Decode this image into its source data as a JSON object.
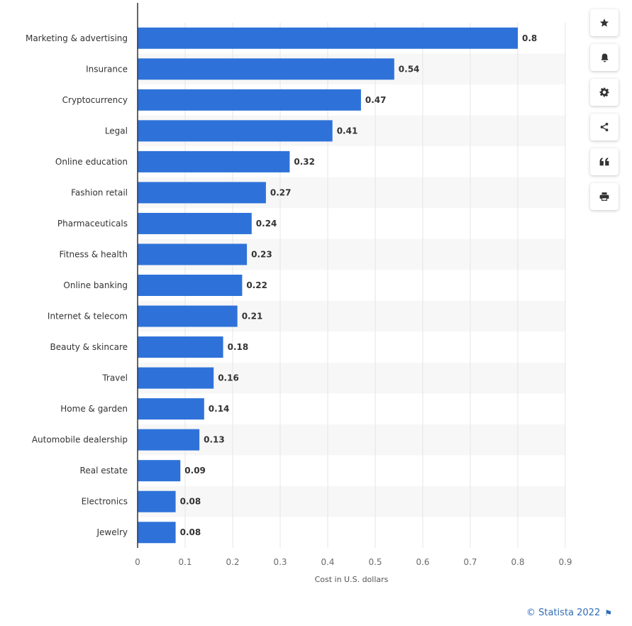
{
  "chart_data": {
    "type": "bar",
    "orientation": "horizontal",
    "categories": [
      "Marketing & advertising",
      "Insurance",
      "Cryptocurrency",
      "Legal",
      "Online education",
      "Fashion retail",
      "Pharmaceuticals",
      "Fitness & health",
      "Online banking",
      "Internet & telecom",
      "Beauty & skincare",
      "Travel",
      "Home & garden",
      "Automobile dealership",
      "Real estate",
      "Electronics",
      "Jewelry"
    ],
    "values": [
      0.8,
      0.54,
      0.47,
      0.41,
      0.32,
      0.27,
      0.24,
      0.23,
      0.22,
      0.21,
      0.18,
      0.16,
      0.14,
      0.13,
      0.09,
      0.08,
      0.08
    ],
    "value_labels": [
      "0.8",
      "0.54",
      "0.47",
      "0.41",
      "0.32",
      "0.27",
      "0.24",
      "0.23",
      "0.22",
      "0.21",
      "0.18",
      "0.16",
      "0.14",
      "0.13",
      "0.09",
      "0.08",
      "0.08"
    ],
    "xlabel": "Cost in U.S. dollars",
    "ylabel": "",
    "xlim": [
      0,
      0.9
    ],
    "x_ticks": [
      0,
      0.1,
      0.2,
      0.3,
      0.4,
      0.5,
      0.6,
      0.7,
      0.8,
      0.9
    ],
    "x_tick_labels": [
      "0",
      "0.1",
      "0.2",
      "0.3",
      "0.4",
      "0.5",
      "0.6",
      "0.7",
      "0.8",
      "0.9"
    ],
    "grid": true,
    "alternating_row_bands": true,
    "bar_color": "#2e72d9"
  },
  "toolbar": [
    {
      "name": "star-icon",
      "label": "Favorite"
    },
    {
      "name": "bell-icon",
      "label": "Notifications"
    },
    {
      "name": "gear-icon",
      "label": "Settings"
    },
    {
      "name": "share-icon",
      "label": "Share"
    },
    {
      "name": "quote-icon",
      "label": "Cite"
    },
    {
      "name": "print-icon",
      "label": "Print"
    }
  ],
  "footer": {
    "credit": "© Statista 2022",
    "flag_icon": "flag-icon"
  },
  "colors": {
    "bar": "#2e72d9",
    "band": "#f7f7f7",
    "grid": "#e4e4e4",
    "axis": "#333333",
    "link": "#2f6db5"
  }
}
